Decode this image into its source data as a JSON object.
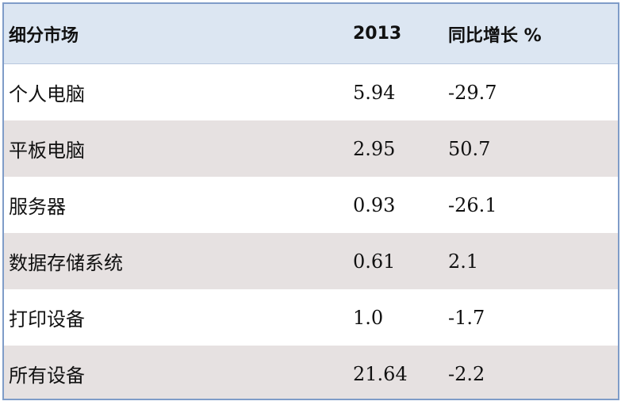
{
  "table": {
    "headers": [
      "细分市场",
      "2013",
      "同比增长 %"
    ],
    "rows": [
      {
        "segment": "个人电脑",
        "value_2013": "5.94",
        "growth": "-29.7"
      },
      {
        "segment": "平板电脑",
        "value_2013": "2.95",
        "growth": "50.7"
      },
      {
        "segment": "服务器",
        "value_2013": "0.93",
        "growth": "-26.1"
      },
      {
        "segment": "数据存储系统",
        "value_2013": "0.61",
        "growth": "2.1"
      },
      {
        "segment": "打印设备",
        "value_2013": "1.0",
        "growth": "-1.7"
      },
      {
        "segment": "所有设备",
        "value_2013": "21.64",
        "growth": "-2.2"
      }
    ],
    "colors": {
      "header_bg": "#dce6f2",
      "shaded_row_bg": "#e6e1e1",
      "border": "#7f9cc8"
    }
  }
}
